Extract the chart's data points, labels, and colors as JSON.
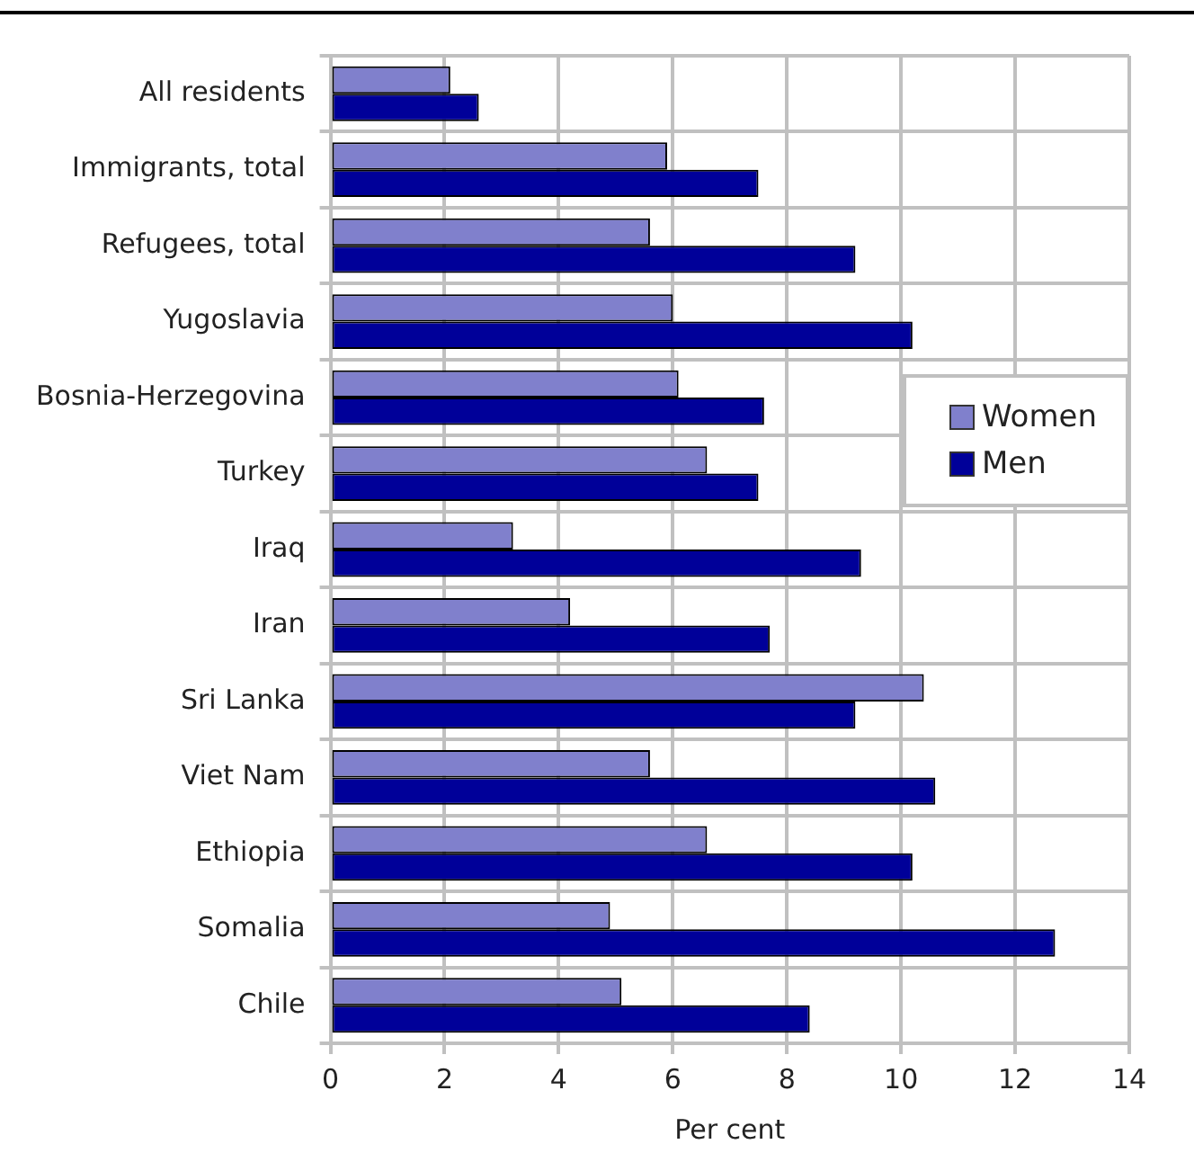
{
  "chart_data": {
    "type": "bar",
    "orientation": "horizontal",
    "xlabel": "Per cent",
    "categories": [
      "All residents",
      "Immigrants, total",
      "Refugees, total",
      "Yugoslavia",
      "Bosnia-Herzegovina",
      "Turkey",
      "Iraq",
      "Iran",
      "Sri Lanka",
      "Viet Nam",
      "Ethiopia",
      "Somalia",
      "Chile"
    ],
    "series": [
      {
        "name": "Women",
        "color": "#8080cc",
        "values": [
          2.1,
          5.9,
          5.6,
          6.0,
          6.1,
          6.6,
          3.2,
          4.2,
          10.4,
          5.6,
          6.6,
          4.9,
          5.1
        ]
      },
      {
        "name": "Men",
        "color": "#000099",
        "values": [
          2.6,
          7.5,
          9.2,
          10.2,
          7.6,
          7.5,
          9.3,
          7.7,
          9.2,
          10.6,
          10.2,
          12.7,
          8.4
        ]
      }
    ],
    "xlim": [
      0,
      14
    ],
    "xticks": [
      0,
      2,
      4,
      6,
      8,
      10,
      12,
      14
    ],
    "grid": true,
    "legend": "right"
  }
}
